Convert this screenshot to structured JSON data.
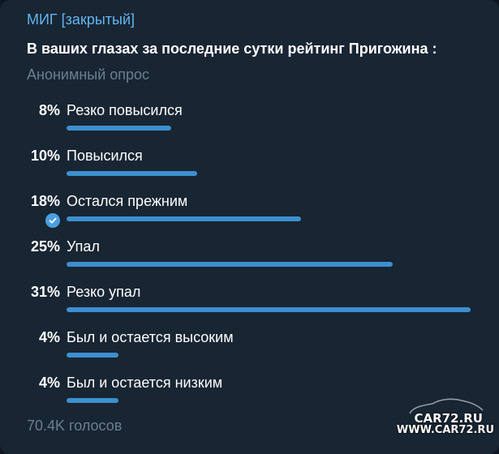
{
  "poll": {
    "channel": "МИГ [закрытый]",
    "question": "В ваших глазах за последние сутки рейтинг Пригожина :",
    "type": "Анонимный опрос",
    "votes": "70.4K голосов",
    "bar_color": "#3d8fcf",
    "options": [
      {
        "percent": "8%",
        "label": "Резко повысился",
        "share": 0.08,
        "selected": false
      },
      {
        "percent": "10%",
        "label": "Повысился",
        "share": 0.1,
        "selected": false
      },
      {
        "percent": "18%",
        "label": "Остался прежним",
        "share": 0.18,
        "selected": true
      },
      {
        "percent": "25%",
        "label": "Упал",
        "share": 0.25,
        "selected": false
      },
      {
        "percent": "31%",
        "label": "Резко упал",
        "share": 0.31,
        "selected": false
      },
      {
        "percent": "4%",
        "label": "Был и остается высоким",
        "share": 0.04,
        "selected": false
      },
      {
        "percent": "4%",
        "label": "Был и остается низким",
        "share": 0.04,
        "selected": false
      }
    ]
  },
  "watermark": {
    "line1": "CAR72.RU",
    "line2": "WWW.CAR72.RU"
  }
}
